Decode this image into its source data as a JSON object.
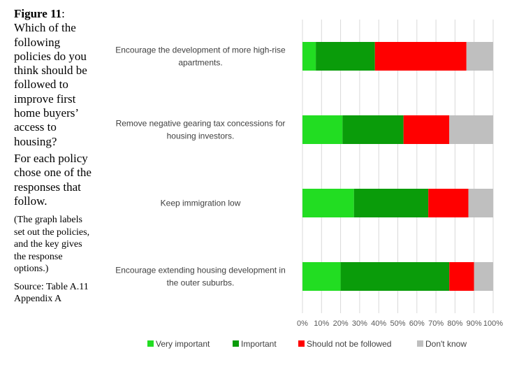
{
  "caption": {
    "figure_label": "Figure 11",
    "figure_sep": ":",
    "question": "Which of the following policies do you think should be followed to improve first home buyers’ access to housing?",
    "instruction": "For each policy chose one of the responses that follow.",
    "note": "(The graph labels set out the policies, and the key gives the response options.)",
    "source": "Source: Table A.11 Appendix A"
  },
  "chart_data": {
    "type": "bar",
    "stacked": true,
    "orientation": "horizontal",
    "percent_stacked": true,
    "categories": [
      [
        "Encourage the development of more high-rise",
        "apartments."
      ],
      [
        "Remove negative gearing tax concessions for",
        "housing investors."
      ],
      [
        "Keep immigration low"
      ],
      [
        "Encourage extending housing development in",
        "the outer suburbs."
      ]
    ],
    "series": [
      {
        "name": "Very important",
        "color": "#22dd22",
        "values": [
          7,
          21,
          27,
          20
        ]
      },
      {
        "name": "Important",
        "color": "#0a9c0a",
        "values": [
          31,
          32,
          39,
          57
        ]
      },
      {
        "name": "Should not be followed",
        "color": "#ff0000",
        "values": [
          48,
          24,
          21,
          13
        ]
      },
      {
        "name": "Don't know",
        "color": "#bfbfbf",
        "values": [
          14,
          23,
          13,
          10
        ]
      }
    ],
    "xlim": [
      0,
      100
    ],
    "ticks": [
      "0%",
      "10%",
      "20%",
      "30%",
      "40%",
      "50%",
      "60%",
      "70%",
      "80%",
      "90%",
      "100%"
    ],
    "grid": true,
    "legend": "bottom"
  }
}
